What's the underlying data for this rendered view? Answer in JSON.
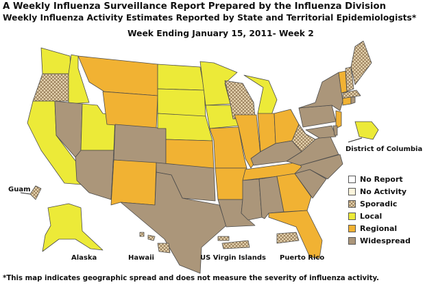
{
  "header": {
    "line1": "A Weekly Influenza Surveillance Report Prepared by the Influenza Division",
    "line2": "Weekly Influenza Activity Estimates Reported by State and Territorial Epidemiologists*",
    "line3": "Week Ending January 15, 2011- Week 2"
  },
  "labels": {
    "dc": "District of Columbia",
    "guam": "Guam",
    "alaska": "Alaska",
    "hawaii": "Hawaii",
    "usvi": "US Virgin Islands",
    "pr": "Puerto Rico"
  },
  "legend": [
    {
      "key": "no_report",
      "label": "No Report",
      "color": "#ffffff"
    },
    {
      "key": "no_activity",
      "label": "No Activity",
      "color": "#fbf4dc"
    },
    {
      "key": "sporadic",
      "label": "Sporadic",
      "color": "#e9d8b4"
    },
    {
      "key": "local",
      "label": "Local",
      "color": "#ecea38"
    },
    {
      "key": "regional",
      "label": "Regional",
      "color": "#f1b233"
    },
    {
      "key": "widespread",
      "label": "Widespread",
      "color": "#ab967a"
    }
  ],
  "footnote": "*This map indicates geographic spread and does not measure the severity of influenza activity."
}
